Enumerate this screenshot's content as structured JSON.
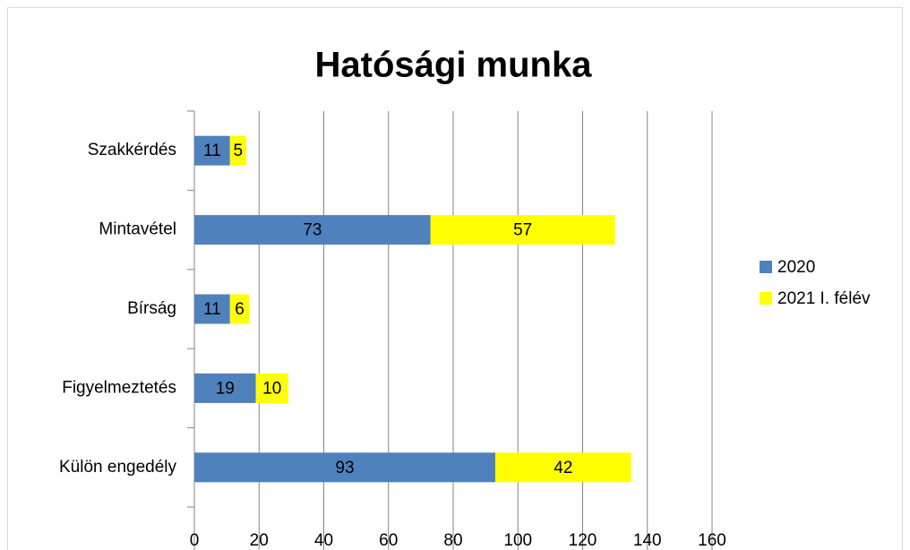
{
  "chart_data": {
    "type": "stacked_bar_horizontal",
    "title": "Hatósági munka",
    "categories": [
      "Szakkérdés",
      "Mintavétel",
      "Bírság",
      "Figyelmeztetés",
      "Külön engedély"
    ],
    "series": [
      {
        "name": "2020",
        "color": "#4f81bd",
        "values": [
          11,
          73,
          11,
          19,
          93
        ]
      },
      {
        "name": "2021 I. félév",
        "color": "#ffff00",
        "values": [
          5,
          57,
          6,
          10,
          42
        ]
      }
    ],
    "xlim": [
      0,
      160
    ],
    "xticks": [
      0,
      20,
      40,
      60,
      80,
      100,
      120,
      140,
      160
    ],
    "grid": true,
    "legend": "right"
  }
}
